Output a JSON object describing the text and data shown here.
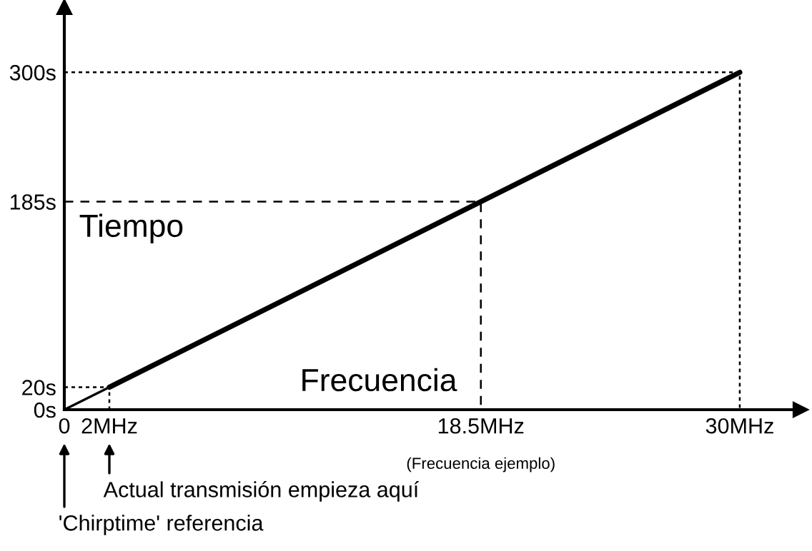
{
  "chart_data": {
    "type": "line",
    "xlabel": "Frecuencia",
    "ylabel": "Tiempo",
    "series": [
      {
        "color": "#000000",
        "x": [
          0,
          2
        ],
        "values": [
          0,
          20
        ]
      },
      {
        "color": "#000000",
        "x": [
          2,
          30
        ],
        "values": [
          20,
          300
        ]
      },
      {
        "color": "#000000",
        "x": [
          0,
          2,
          2
        ],
        "values": [
          20,
          20,
          0
        ],
        "line_style": "dotted"
      },
      {
        "color": "#000000",
        "x": [
          0,
          18.5,
          18.5
        ],
        "values": [
          185,
          185,
          0
        ],
        "line_style": "dashed"
      },
      {
        "color": "#000000",
        "x": [
          0,
          30,
          30
        ],
        "values": [
          300,
          300,
          0
        ],
        "line_style": "dotted"
      }
    ],
    "xlim": [
      0,
      32.7
    ],
    "ylim": [
      0,
      358
    ],
    "xticks": [
      0,
      {
        "value": 2,
        "label": "2MHz"
      },
      {
        "value": 18.5,
        "label": "18.5MHz"
      },
      {
        "value": 30,
        "label": "30MHz"
      }
    ],
    "yticks": [
      {
        "value": 0,
        "label": "0s"
      },
      {
        "value": 20,
        "label": "20s"
      },
      {
        "value": 185,
        "label": "185s"
      },
      {
        "value": 300,
        "label": "300s"
      }
    ],
    "annotations": [
      "(Frecuencia ejemplo)",
      "Actual transmisión empieza aquí",
      "'Chirptime' referencia"
    ],
    "grid": false
  }
}
